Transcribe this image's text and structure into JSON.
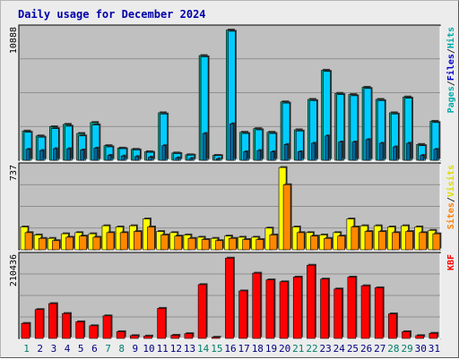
{
  "chart_data": {
    "type": "bar",
    "title": "Daily usage for December 2024",
    "categories": [
      "1",
      "2",
      "3",
      "4",
      "5",
      "6",
      "7",
      "8",
      "9",
      "10",
      "11",
      "12",
      "13",
      "14",
      "15",
      "16",
      "17",
      "18",
      "19",
      "20",
      "21",
      "22",
      "23",
      "24",
      "25",
      "26",
      "27",
      "28",
      "29",
      "30",
      "31"
    ],
    "weekend_days": [
      "1",
      "7",
      "8",
      "14",
      "15",
      "21",
      "22",
      "28",
      "29"
    ],
    "colors": {
      "title": "#0000aa",
      "pages": "#006699",
      "files": "#0000cc",
      "hits": "#00aaaa",
      "sites": "#ff8000",
      "visits": "#dddd00",
      "kbytes": "#ff0000",
      "weekday_label": "#000080",
      "weekend_label": "#00806a",
      "plot_background": "#c0c0c0",
      "bar_files": "#00ccff",
      "bar_hits": "#00a088",
      "bar_sites": "#ff8800",
      "bar_visits": "#ffff00",
      "bar_kbytes": "#ff0000"
    },
    "panels": [
      {
        "key": "hits_files_pages",
        "max_label": "10888",
        "legend": [
          "Pages",
          "/",
          "Files",
          "/",
          "Hits"
        ],
        "ylim": [
          0,
          10888
        ],
        "series": [
          {
            "name": "Hits",
            "values": [
              2400,
              2000,
              2750,
              2950,
              2200,
              3100,
              1200,
              1000,
              900,
              700,
              3900,
              600,
              450,
              8600,
              400,
              10700,
              2300,
              2600,
              2300,
              4800,
              2500,
              5000,
              7400,
              5500,
              5400,
              6000,
              5000,
              3900,
              5200,
              1300,
              3200
            ]
          },
          {
            "name": "Files",
            "values": [
              2300,
              1900,
              2600,
              2800,
              2000,
              2900,
              1100,
              950,
              850,
              650,
              3800,
              550,
              420,
              8500,
              380,
              10600,
              2200,
              2500,
              2200,
              4700,
              2400,
              4900,
              7300,
              5400,
              5300,
              5900,
              4900,
              3800,
              5100,
              1200,
              3100
            ]
          },
          {
            "name": "Pages",
            "values": [
              900,
              800,
              950,
              950,
              850,
              1000,
              400,
              350,
              300,
              250,
              1200,
              200,
              150,
              2200,
              120,
              3000,
              700,
              800,
              700,
              1300,
              700,
              1400,
              2000,
              1500,
              1500,
              1700,
              1400,
              1100,
              1400,
              400,
              900
            ]
          }
        ]
      },
      {
        "key": "sites_visits",
        "max_label": "737",
        "legend": [
          "Sites",
          "/",
          "Visits"
        ],
        "ylim": [
          0,
          737
        ],
        "series": [
          {
            "name": "Visits",
            "values": [
              200,
              130,
              100,
              140,
              150,
              140,
              210,
              200,
              210,
              270,
              160,
              150,
              130,
              110,
              100,
              120,
              110,
              110,
              190,
              720,
              200,
              150,
              130,
              150,
              270,
              210,
              210,
              200,
              210,
              200,
              170
            ]
          },
          {
            "name": "Sites",
            "values": [
              150,
              100,
              80,
              110,
              120,
              110,
              150,
              150,
              160,
              200,
              130,
              120,
              100,
              90,
              80,
              100,
              90,
              90,
              130,
              570,
              150,
              120,
              100,
              120,
              200,
              160,
              160,
              150,
              160,
              150,
              140
            ]
          }
        ]
      },
      {
        "key": "kbytes",
        "max_label": "210436",
        "legend": [
          "KB",
          "F"
        ],
        "ylim": [
          0,
          210436
        ],
        "series": [
          {
            "name": "KB F",
            "values": [
              38000,
              73000,
              88000,
              63000,
              42000,
              32000,
              57000,
              17000,
              7000,
              6000,
              76000,
              8000,
              12000,
              136000,
              3000,
              203000,
              120000,
              165000,
              148000,
              143000,
              155000,
              185000,
              150000,
              125000,
              155000,
              133000,
              128000,
              62000,
              17000,
              7000,
              13000
            ]
          }
        ]
      }
    ]
  }
}
